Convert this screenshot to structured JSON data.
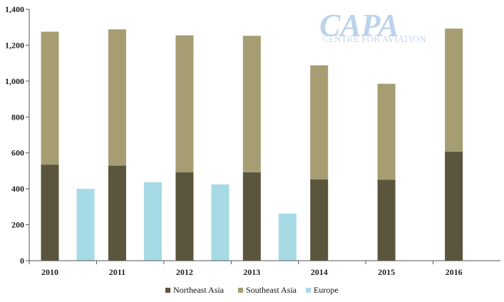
{
  "chart_data": {
    "type": "bar",
    "stacked": true,
    "title": "",
    "xlabel": "",
    "ylabel": "",
    "ylim": [
      0,
      1400
    ],
    "yticks": [
      0,
      200,
      400,
      600,
      800,
      1000,
      1200,
      1400
    ],
    "ytick_labels": [
      "0",
      "200",
      "400",
      "600",
      "800",
      "1,000",
      "1,200",
      "1,400"
    ],
    "categories": [
      "2010",
      "2011",
      "2012",
      "2013",
      "2014",
      "2015",
      "2016"
    ],
    "series": [
      {
        "name": "Northeast Asia",
        "color": "#5a553c",
        "stack": "asia",
        "values": [
          535,
          530,
          492,
          492,
          453,
          450,
          607
        ]
      },
      {
        "name": "Southeast Asia",
        "color": "#a79d73",
        "stack": "asia",
        "values": [
          740,
          758,
          763,
          760,
          635,
          535,
          685
        ]
      },
      {
        "name": "Europe",
        "color": "#a6dbe5",
        "stack": "europe",
        "values": [
          400,
          437,
          425,
          262,
          null,
          null,
          null
        ]
      }
    ],
    "grid": false,
    "legend_position": "bottom"
  },
  "watermark": {
    "brand": "CAPA",
    "tagline": "CENTRE FOR AVIATION"
  }
}
